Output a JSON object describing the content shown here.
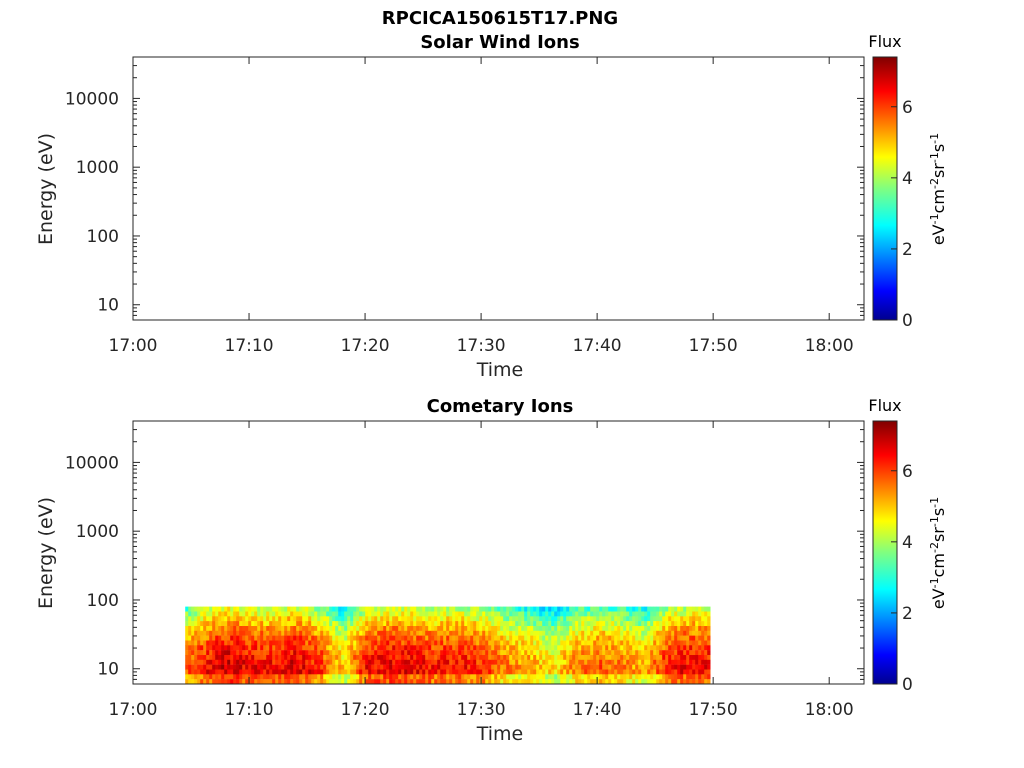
{
  "figure": {
    "title": "RPCICA150615T17.PNG"
  },
  "colors": {
    "axis": "#262626",
    "background": "#ffffff",
    "colormap": "jet"
  },
  "chart_data": [
    {
      "type": "heatmap",
      "title": "Solar Wind Ions",
      "xlabel": "Time",
      "ylabel": "Energy (eV)",
      "xlim": [
        "17:00",
        "18:03"
      ],
      "ylim": [
        6,
        40000
      ],
      "yscale": "log",
      "x_ticks": [
        "17:00",
        "17:10",
        "17:20",
        "17:30",
        "17:40",
        "17:50",
        "18:00"
      ],
      "y_ticks": [
        "10",
        "100",
        "1000",
        "10000"
      ],
      "colorbar": {
        "title": "Flux",
        "label": "eV-1cm-2sr-1s-1",
        "ticks": [
          "0",
          "2",
          "4",
          "6"
        ],
        "range": [
          0,
          7.4
        ]
      },
      "data": []
    },
    {
      "type": "heatmap",
      "title": "Cometary Ions",
      "xlabel": "Time",
      "ylabel": "Energy (eV)",
      "xlim": [
        "17:00",
        "18:03"
      ],
      "ylim": [
        6,
        40000
      ],
      "yscale": "log",
      "x_ticks": [
        "17:00",
        "17:10",
        "17:20",
        "17:30",
        "17:40",
        "17:50",
        "18:00"
      ],
      "y_ticks": [
        "10",
        "100",
        "1000",
        "10000"
      ],
      "colorbar": {
        "title": "Flux",
        "label": "eV-1cm-2sr-1s-1",
        "ticks": [
          "0",
          "2",
          "4",
          "6"
        ],
        "range": [
          0,
          7.4
        ]
      },
      "data_time_range": [
        "17:04.5",
        "17:49.5"
      ],
      "energy_range": [
        6,
        80
      ],
      "flux_profile": {
        "minutes": [
          4.5,
          6,
          8,
          10,
          12,
          14,
          16,
          18,
          20,
          22,
          24,
          26,
          28,
          30,
          32,
          34,
          36,
          38,
          40,
          42,
          44,
          46,
          48,
          49.5
        ],
        "flux": [
          5.8,
          6.4,
          6.9,
          6.6,
          6.5,
          6.8,
          6.2,
          5.0,
          6.5,
          6.7,
          6.6,
          6.4,
          6.5,
          6.2,
          5.6,
          5.4,
          4.8,
          5.6,
          5.9,
          5.6,
          5.2,
          6.4,
          6.6,
          6.5
        ]
      }
    }
  ]
}
